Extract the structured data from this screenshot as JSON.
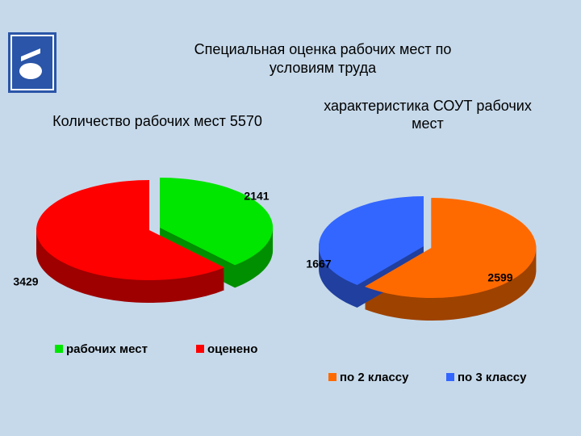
{
  "title": "Специальная оценка рабочих мест по условиям труда",
  "chart_data": [
    {
      "type": "pie",
      "title": "Количество рабочих мест 5570",
      "categories": [
        "рабочих мест",
        "оценено"
      ],
      "values": [
        2141,
        3429
      ],
      "colors": [
        "#00e600",
        "#ff0000"
      ]
    },
    {
      "type": "pie",
      "title": "характеристика СОУТ рабочих мест",
      "categories": [
        "по 2 классу",
        "по 3 классу"
      ],
      "values": [
        2599,
        1667
      ],
      "colors": [
        "#ff6a00",
        "#3366ff"
      ]
    }
  ]
}
